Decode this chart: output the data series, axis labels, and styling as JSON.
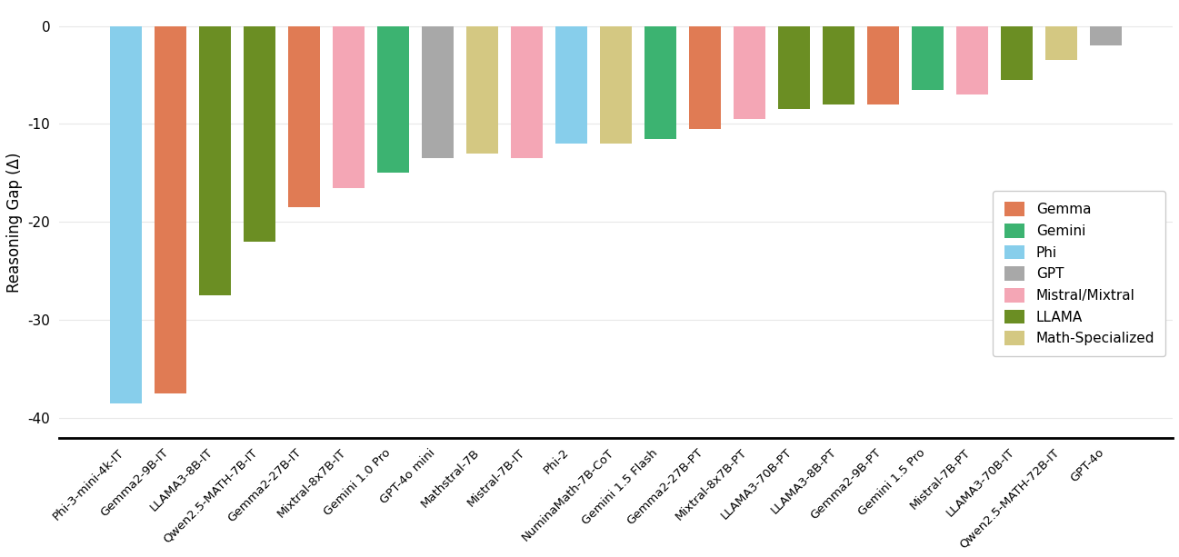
{
  "models": [
    "Phi-3-mini-4k-IT",
    "Gemma2-9B-IT",
    "LLAMA3-8B-IT",
    "Qwen2.5-MATH-7B-IT",
    "Gemma2-27B-IT",
    "Mixtral-8x7B-IT",
    "Gemini 1.0 Pro",
    "GPT-4o mini",
    "Mathstral-7B",
    "Mistral-7B-IT",
    "Phi-2",
    "NuminaMath-7B-CoT",
    "Gemini 1.5 Flash",
    "Gemma2-27B-PT",
    "Mixtral-8x7B-PT",
    "LLAMA3-70B-PT",
    "LLAMA3-8B-PT",
    "Gemma2-9B-PT",
    "Gemini 1.5 Pro",
    "Mistral-7B-PT",
    "LLAMA3-70B-IT",
    "Qwen2.5-MATH-72B-IT",
    "GPT-4o"
  ],
  "values": [
    -38.5,
    -37.5,
    -27.5,
    -22.0,
    -18.5,
    -16.5,
    -15.0,
    -13.5,
    -13.0,
    -13.5,
    -12.0,
    -12.0,
    -11.5,
    -10.5,
    -9.5,
    -8.5,
    -8.0,
    -8.0,
    -6.5,
    -7.0,
    -5.5,
    -3.5,
    -2.0
  ],
  "bar_colors": [
    "#87CEEB",
    "#E07B54",
    "#6B8E23",
    "#6B8E23",
    "#E07B54",
    "#F4A6B5",
    "#3CB371",
    "#A8A8A8",
    "#D4C882",
    "#F4A6B5",
    "#87CEEB",
    "#D4C882",
    "#3CB371",
    "#E07B54",
    "#F4A6B5",
    "#6B8E23",
    "#6B8E23",
    "#E07B54",
    "#3CB371",
    "#F4A6B5",
    "#6B8E23",
    "#D4C882",
    "#A8A8A8"
  ],
  "legend_labels": [
    "Gemma",
    "Gemini",
    "Phi",
    "GPT",
    "Mistral/Mixtral",
    "LLAMA",
    "Math-Specialized"
  ],
  "legend_colors": [
    "#E07B54",
    "#3CB371",
    "#87CEEB",
    "#A8A8A8",
    "#F4A6B5",
    "#6B8E23",
    "#D4C882"
  ],
  "ylabel": "Reasoning Gap (Δ)",
  "ylim": [
    -42,
    2
  ],
  "yticks": [
    0,
    -10,
    -20,
    -30,
    -40
  ],
  "background_color": "#ffffff",
  "grid_color": "#e8e8e8"
}
